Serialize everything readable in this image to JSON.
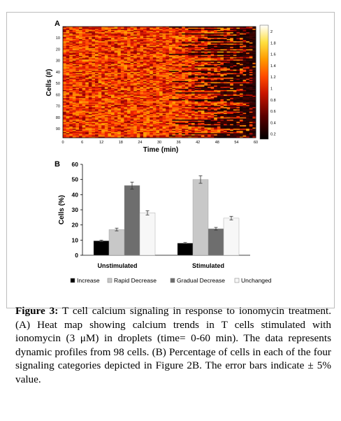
{
  "panel_a": {
    "label": "A",
    "ylabel": "Cells (#)",
    "xlabel": "Time (min)",
    "y_ticks": [
      "10",
      "20",
      "30",
      "40",
      "50",
      "60",
      "70",
      "80",
      "90"
    ],
    "x_ticks": [
      "0",
      "6",
      "12",
      "18",
      "24",
      "30",
      "36",
      "42",
      "48",
      "54",
      "60"
    ],
    "colorbar_ticks": [
      "2",
      "1.8",
      "1.6",
      "1.4",
      "1.2",
      "1",
      "0.8",
      "0.6",
      "0.4",
      "0.2"
    ]
  },
  "chart_data": {
    "type": "bar",
    "label": "B",
    "categories": [
      "Unstimulated",
      "Stimulated"
    ],
    "series": [
      {
        "name": "Increase",
        "values": [
          9.5,
          8
        ],
        "error": [
          0.5,
          0.4
        ],
        "color": "#000000"
      },
      {
        "name": "Rapid Decrease",
        "values": [
          17,
          50
        ],
        "error": [
          0.9,
          2.5
        ],
        "color": "#c8c8c8"
      },
      {
        "name": "Gradual Decrease",
        "values": [
          46,
          17.5
        ],
        "error": [
          2.3,
          0.9
        ],
        "color": "#6e6e6e"
      },
      {
        "name": "Unchanged",
        "values": [
          28,
          24.5
        ],
        "error": [
          1.4,
          1.2
        ],
        "color": "#f7f7f7"
      }
    ],
    "ylabel": "Cells (%)",
    "ylim": [
      0,
      60
    ],
    "y_ticks": [
      0,
      10,
      20,
      30,
      40,
      50,
      60
    ],
    "grid": false,
    "legend_position": "bottom"
  },
  "caption": {
    "label": "Figure 3:",
    "text": " T cell calcium signaling in response to ionomycin treatment. (A) Heat map showing calcium trends in T cells stimulated with ionomycin (3 μM) in droplets (time= 0-60 min). The data represents dynamic profiles from 98 cells. (B) Percentage of cells in each of the four signaling categories depicted in Figure 2B. The error bars indicate ± 5% value."
  }
}
